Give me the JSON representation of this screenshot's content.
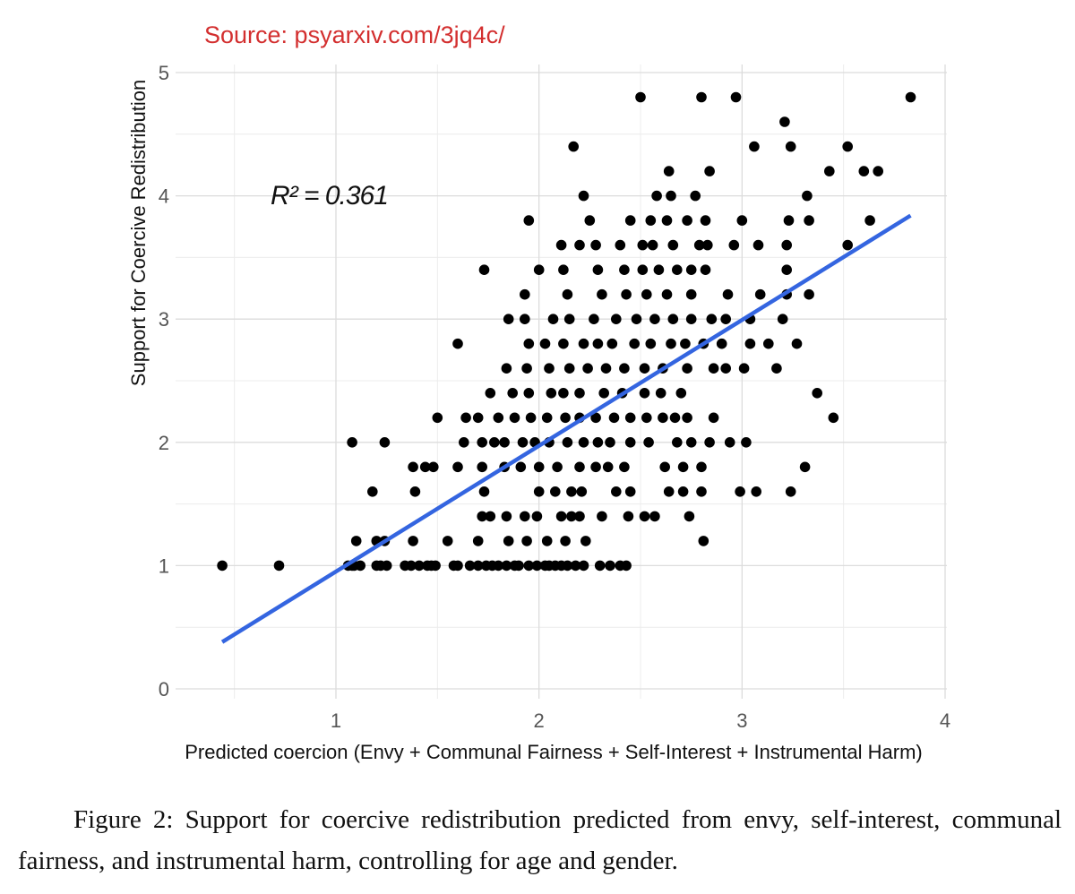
{
  "source_note": "Source: psyarxiv.com/3jq4c/",
  "caption": "Figure 2: Support for coercive redistribution predicted from envy, self-interest, communal fairness, and instrumental harm, controlling for age and gender.",
  "colors": {
    "source_text": "#d32f2f",
    "points": "#000000",
    "fit_line": "#3465e0",
    "grid_major": "#dcdcdc",
    "grid_minor": "#ececec",
    "tick_text": "#555555"
  },
  "chart_data": {
    "type": "scatter",
    "xlabel": "Predicted coercion (Envy + Communal Fairness + Self-Interest + Instrumental Harm)",
    "ylabel": "Support for Coercive Redistribution",
    "annotation": "R² = 0.361",
    "xlim": [
      0.35,
      4
    ],
    "ylim": [
      -0.1,
      5
    ],
    "xticks": [
      1,
      2,
      3,
      4
    ],
    "yticks": [
      0,
      1,
      2,
      3,
      4,
      5
    ],
    "grid": true,
    "fit_line": {
      "x": [
        0.44,
        3.83
      ],
      "y": [
        0.38,
        3.84
      ]
    },
    "x": [
      0.44,
      0.72,
      1.06,
      1.09,
      1.08,
      1.12,
      1.2,
      1.22,
      1.25,
      1.34,
      1.37,
      1.47,
      1.41,
      1.45,
      1.49,
      1.58,
      1.6,
      1.66,
      1.7,
      1.74,
      1.77,
      1.8,
      1.84,
      1.88,
      1.9,
      1.95,
      1.99,
      2.03,
      2.05,
      2.08,
      2.11,
      2.14,
      2.18,
      2.22,
      2.3,
      2.35,
      2.4,
      2.43,
      1.1,
      1.2,
      1.24,
      1.38,
      1.55,
      1.7,
      1.85,
      1.94,
      2.04,
      2.13,
      2.23,
      1.72,
      1.76,
      1.84,
      1.93,
      1.99,
      2.11,
      2.16,
      2.2,
      2.31,
      2.44,
      2.52,
      2.57,
      2.74,
      2.81,
      1.18,
      1.39,
      1.73,
      2.0,
      2.08,
      2.16,
      2.21,
      2.38,
      2.45,
      2.64,
      2.71,
      2.8,
      2.99,
      3.07,
      3.24,
      1.38,
      1.44,
      1.48,
      1.6,
      1.72,
      1.83,
      1.91,
      2.0,
      2.09,
      2.2,
      2.28,
      2.34,
      2.42,
      2.62,
      2.71,
      2.8,
      3.31,
      1.08,
      1.24,
      1.63,
      1.72,
      1.78,
      1.83,
      1.92,
      1.98,
      2.05,
      2.14,
      2.22,
      2.29,
      2.35,
      2.45,
      2.54,
      2.68,
      2.75,
      2.84,
      2.94,
      3.02,
      1.5,
      1.64,
      1.7,
      1.8,
      1.88,
      1.96,
      2.04,
      2.13,
      2.2,
      2.28,
      2.37,
      2.45,
      2.53,
      2.61,
      2.67,
      2.73,
      2.86,
      3.45,
      1.76,
      1.87,
      1.95,
      2.06,
      2.12,
      2.2,
      2.32,
      2.41,
      2.52,
      2.6,
      2.7,
      3.37,
      1.84,
      1.94,
      2.05,
      2.15,
      2.24,
      2.33,
      2.42,
      2.52,
      2.61,
      2.73,
      2.86,
      2.92,
      3.01,
      3.17,
      1.6,
      1.95,
      2.03,
      2.12,
      2.22,
      2.29,
      2.36,
      2.47,
      2.55,
      2.65,
      2.72,
      2.81,
      2.9,
      3.04,
      3.13,
      3.27,
      1.85,
      1.93,
      2.07,
      2.15,
      2.27,
      2.38,
      2.48,
      2.57,
      2.66,
      2.75,
      2.85,
      2.92,
      3.04,
      3.2,
      1.93,
      2.14,
      2.31,
      2.43,
      2.53,
      2.63,
      2.75,
      2.93,
      3.09,
      3.22,
      3.33,
      1.73,
      2.0,
      2.12,
      2.29,
      2.42,
      2.51,
      2.59,
      2.68,
      2.75,
      2.82,
      3.22,
      2.11,
      2.2,
      2.28,
      2.4,
      2.51,
      2.56,
      2.66,
      2.79,
      2.83,
      2.96,
      3.08,
      3.22,
      3.52,
      1.95,
      2.25,
      2.45,
      2.55,
      2.63,
      2.73,
      2.82,
      3.0,
      3.23,
      3.33,
      3.63,
      2.22,
      2.58,
      2.77,
      2.65,
      3.32,
      2.64,
      2.84,
      3.43,
      3.6,
      3.67,
      2.17,
      3.06,
      3.24,
      3.52,
      3.21,
      2.5,
      2.8,
      2.97,
      3.83
    ],
    "y": [
      1.0,
      1.0,
      1.0,
      1.0,
      1.0,
      1.0,
      1.0,
      1.0,
      1.0,
      1.0,
      1.0,
      1.0,
      1.0,
      1.0,
      1.0,
      1.0,
      1.0,
      1.0,
      1.0,
      1.0,
      1.0,
      1.0,
      1.0,
      1.0,
      1.0,
      1.0,
      1.0,
      1.0,
      1.0,
      1.0,
      1.0,
      1.0,
      1.0,
      1.0,
      1.0,
      1.0,
      1.0,
      1.0,
      1.2,
      1.2,
      1.2,
      1.2,
      1.2,
      1.2,
      1.2,
      1.2,
      1.2,
      1.2,
      1.2,
      1.4,
      1.4,
      1.4,
      1.4,
      1.4,
      1.4,
      1.4,
      1.4,
      1.4,
      1.4,
      1.4,
      1.4,
      1.4,
      1.2,
      1.6,
      1.6,
      1.6,
      1.6,
      1.6,
      1.6,
      1.6,
      1.6,
      1.6,
      1.6,
      1.6,
      1.6,
      1.6,
      1.6,
      1.6,
      1.8,
      1.8,
      1.8,
      1.8,
      1.8,
      1.8,
      1.8,
      1.8,
      1.8,
      1.8,
      1.8,
      1.8,
      1.8,
      1.8,
      1.8,
      1.8,
      1.8,
      2.0,
      2.0,
      2.0,
      2.0,
      2.0,
      2.0,
      2.0,
      2.0,
      2.0,
      2.0,
      2.0,
      2.0,
      2.0,
      2.0,
      2.0,
      2.0,
      2.0,
      2.0,
      2.0,
      2.0,
      2.2,
      2.2,
      2.2,
      2.2,
      2.2,
      2.2,
      2.2,
      2.2,
      2.2,
      2.2,
      2.2,
      2.2,
      2.2,
      2.2,
      2.2,
      2.2,
      2.2,
      2.2,
      2.4,
      2.4,
      2.4,
      2.4,
      2.4,
      2.4,
      2.4,
      2.4,
      2.4,
      2.4,
      2.4,
      2.4,
      2.6,
      2.6,
      2.6,
      2.6,
      2.6,
      2.6,
      2.6,
      2.6,
      2.6,
      2.6,
      2.6,
      2.6,
      2.6,
      2.6,
      2.8,
      2.8,
      2.8,
      2.8,
      2.8,
      2.8,
      2.8,
      2.8,
      2.8,
      2.8,
      2.8,
      2.8,
      2.8,
      2.8,
      2.8,
      2.8,
      3.0,
      3.0,
      3.0,
      3.0,
      3.0,
      3.0,
      3.0,
      3.0,
      3.0,
      3.0,
      3.0,
      3.0,
      3.0,
      3.0,
      3.2,
      3.2,
      3.2,
      3.2,
      3.2,
      3.2,
      3.2,
      3.2,
      3.2,
      3.2,
      3.2,
      3.4,
      3.4,
      3.4,
      3.4,
      3.4,
      3.4,
      3.4,
      3.4,
      3.4,
      3.4,
      3.4,
      3.6,
      3.6,
      3.6,
      3.6,
      3.6,
      3.6,
      3.6,
      3.6,
      3.6,
      3.6,
      3.6,
      3.6,
      3.6,
      3.8,
      3.8,
      3.8,
      3.8,
      3.8,
      3.8,
      3.8,
      3.8,
      3.8,
      3.8,
      3.8,
      4.0,
      4.0,
      4.0,
      4.0,
      4.0,
      4.2,
      4.2,
      4.2,
      4.2,
      4.2,
      4.4,
      4.4,
      4.4,
      4.4,
      4.6,
      4.8,
      4.8,
      4.8,
      4.8
    ]
  }
}
